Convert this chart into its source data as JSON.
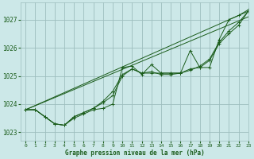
{
  "background_color": "#cce8e8",
  "plot_bg_color": "#cce8e8",
  "grid_color": "#9dbdbd",
  "line_color": "#1a5c1a",
  "xlabel": "Graphe pression niveau de la mer (hPa)",
  "xlim": [
    -0.5,
    23
  ],
  "ylim": [
    1022.7,
    1027.6
  ],
  "yticks": [
    1023,
    1024,
    1025,
    1026,
    1027
  ],
  "xticks": [
    0,
    1,
    2,
    3,
    4,
    5,
    6,
    7,
    8,
    9,
    10,
    11,
    12,
    13,
    14,
    15,
    16,
    17,
    18,
    19,
    20,
    21,
    22,
    23
  ],
  "series": [
    {
      "x": [
        0,
        23
      ],
      "y": [
        1023.8,
        1027.3
      ],
      "marker": false
    },
    {
      "x": [
        0,
        23
      ],
      "y": [
        1023.8,
        1027.1
      ],
      "marker": false
    },
    {
      "x": [
        0,
        1,
        2,
        3,
        4,
        5,
        6,
        7,
        8,
        9,
        10,
        11,
        12,
        13,
        14,
        15,
        16,
        17,
        18,
        19,
        20,
        21,
        22,
        23
      ],
      "y": [
        1023.8,
        1023.8,
        1023.55,
        1023.3,
        1023.25,
        1023.5,
        1023.65,
        1023.8,
        1023.85,
        1024.0,
        1025.3,
        1025.35,
        1025.05,
        1025.4,
        1025.1,
        1025.1,
        1025.1,
        1025.9,
        1025.3,
        1025.3,
        1026.3,
        1027.0,
        1027.15,
        1027.35
      ],
      "marker": true
    },
    {
      "x": [
        0,
        1,
        2,
        3,
        4,
        5,
        6,
        7,
        8,
        9,
        10,
        11,
        12,
        13,
        14,
        15,
        16,
        17,
        18,
        19,
        20,
        21,
        22,
        23
      ],
      "y": [
        1023.8,
        1023.8,
        1023.55,
        1023.3,
        1023.25,
        1023.55,
        1023.7,
        1023.85,
        1024.05,
        1024.3,
        1025.0,
        1025.25,
        1025.1,
        1025.15,
        1025.05,
        1025.05,
        1025.1,
        1025.25,
        1025.3,
        1025.55,
        1026.15,
        1026.5,
        1026.8,
        1027.3
      ],
      "marker": true
    },
    {
      "x": [
        0,
        1,
        2,
        3,
        4,
        5,
        6,
        7,
        8,
        9,
        10,
        11,
        12,
        13,
        14,
        15,
        16,
        17,
        18,
        19,
        20,
        21,
        22,
        23
      ],
      "y": [
        1023.8,
        1023.8,
        1023.55,
        1023.3,
        1023.25,
        1023.55,
        1023.7,
        1023.85,
        1024.1,
        1024.45,
        1025.05,
        1025.25,
        1025.1,
        1025.1,
        1025.1,
        1025.1,
        1025.1,
        1025.2,
        1025.35,
        1025.6,
        1026.2,
        1026.6,
        1026.9,
        1027.3
      ],
      "marker": true
    }
  ]
}
